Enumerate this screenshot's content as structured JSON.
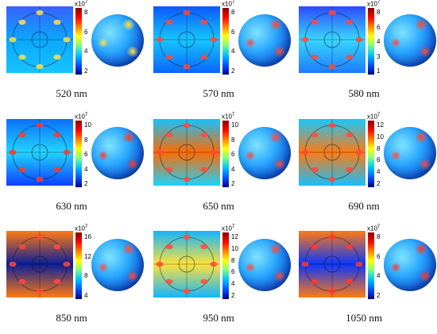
{
  "panels": [
    {
      "id": "p520",
      "wavelength": "520 nm",
      "multiplier": "x10",
      "exp": "7",
      "ticks": [
        "8",
        "6",
        "4",
        "2"
      ],
      "map_top": "#3a60ff",
      "map_mid": "#0aa8ff",
      "map_bottom": "#17c4ff",
      "sphere_accent": "#ffe24a"
    },
    {
      "id": "p570",
      "wavelength": "570 nm",
      "multiplier": "x10",
      "exp": "7",
      "ticks": [
        "8",
        "6",
        "4",
        "2"
      ],
      "map_top": "#0b58ff",
      "map_mid": "#16c6ff",
      "map_bottom": "#0a65ff",
      "sphere_accent": "#ff4a3a"
    },
    {
      "id": "p580",
      "wavelength": "580 nm",
      "multiplier": "x10",
      "exp": "7",
      "ticks": [
        "8",
        "6",
        "4",
        "3",
        "1"
      ],
      "map_top": "#2b4aff",
      "map_mid": "#39d6ff",
      "map_bottom": "#1c7bff",
      "sphere_accent": "#ff4a3a"
    },
    {
      "id": "p630",
      "wavelength": "630 nm",
      "multiplier": "x10",
      "exp": "7",
      "ticks": [
        "10",
        "8",
        "6",
        "4",
        "2"
      ],
      "map_top": "#0b70ff",
      "map_mid": "#22d5ff",
      "map_bottom": "#0d3fff",
      "sphere_accent": "#ff3a2a"
    },
    {
      "id": "p650",
      "wavelength": "650 nm",
      "multiplier": "x10",
      "exp": "7",
      "ticks": [
        "10",
        "8",
        "6",
        "4",
        "2"
      ],
      "map_top": "#14c2ff",
      "map_mid": "#ff6a00",
      "map_bottom": "#1bd3ff",
      "sphere_accent": "#ff4a3a"
    },
    {
      "id": "p690",
      "wavelength": "690 nm",
      "multiplier": "x10",
      "exp": "7",
      "ticks": [
        "12",
        "10",
        "8",
        "6",
        "4",
        "2"
      ],
      "map_top": "#16c8ff",
      "map_mid": "#ff7a12",
      "map_bottom": "#15c0ff",
      "sphere_accent": "#ff4a3a"
    },
    {
      "id": "p850",
      "wavelength": "850 nm",
      "multiplier": "x10",
      "exp": "7",
      "ticks": [
        "16",
        "12",
        "8",
        "4"
      ],
      "map_top": "#ff7a12",
      "map_mid": "#0a1f9a",
      "map_bottom": "#ff7a12",
      "sphere_accent": "#ff4a3a"
    },
    {
      "id": "p950",
      "wavelength": "950 nm",
      "multiplier": "x10",
      "exp": "7",
      "ticks": [
        "12",
        "10",
        "8",
        "6",
        "4",
        "2"
      ],
      "map_top": "#12b4ff",
      "map_mid": "#ffe23a",
      "map_bottom": "#12b4ff",
      "sphere_accent": "#ff4a3a"
    },
    {
      "id": "p1050",
      "wavelength": "1050 nm",
      "multiplier": "x10",
      "exp": "7",
      "ticks": [
        "8",
        "6",
        "4",
        "2"
      ],
      "map_top": "#ff7a12",
      "map_mid": "#0b37ff",
      "map_bottom": "#ff7a12",
      "sphere_accent": "#ff3a2a"
    }
  ]
}
